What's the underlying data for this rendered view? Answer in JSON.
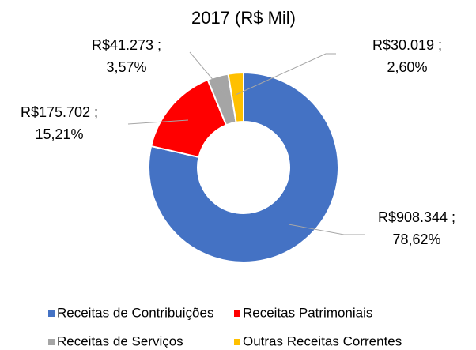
{
  "chart_data": {
    "type": "donut",
    "title": "2017 (R$ Mil)",
    "categories": [
      "Receitas de Contribuições",
      "Receitas Patrimoniais",
      "Receitas de Serviços",
      "Outras Receitas Correntes"
    ],
    "values": [
      908344,
      175702,
      41273,
      30019
    ],
    "value_labels": [
      [
        "R$908.344 ;",
        "78,62%"
      ],
      [
        "R$175.702 ;",
        "15,21%"
      ],
      [
        "R$41.273 ;",
        "3,57%"
      ],
      [
        "R$30.019 ;",
        "2,60%"
      ]
    ],
    "colors": [
      "#4472c4",
      "#ff0000",
      "#a5a5a5",
      "#ffc000"
    ],
    "legend": "bottom"
  }
}
